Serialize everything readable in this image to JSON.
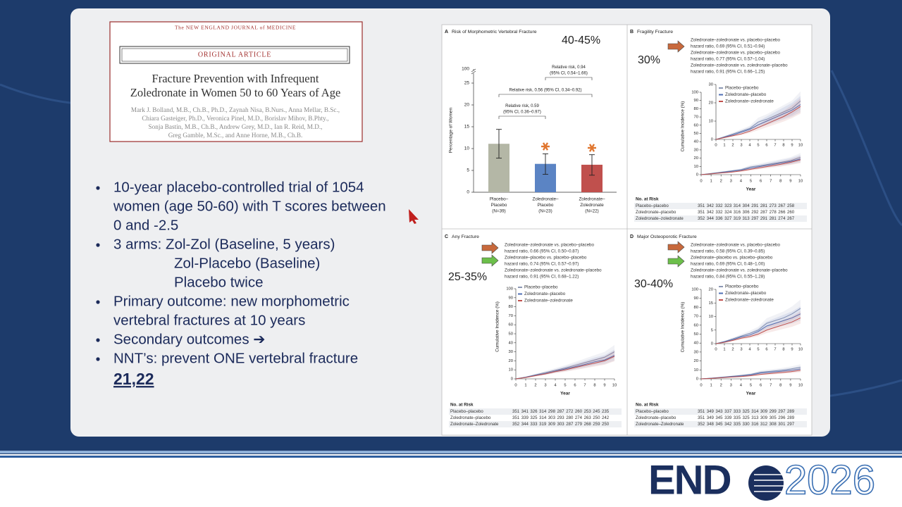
{
  "article": {
    "journal": "The NEW ENGLAND JOURNAL of MEDICINE",
    "section": "ORIGINAL ARTICLE",
    "title_lines": [
      "Fracture Prevention with Infrequent",
      "Zoledronate in Women 50 to 60 Years of Age"
    ],
    "author_lines": [
      "Mark J. Bolland, M.B., Ch.B., Ph.D., Zaynah Nisa, B.Nurs., Anna Mellar, B.Sc.,",
      "Chiara Gasteiger, Ph.D., Veronica Pinel, M.D., Borislav Mihov, B.Phty.,",
      "Sonja Bastin, M.B., Ch.B., Andrew Grey, M.D., Ian R. Reid, M.D.,",
      "Greg Gamble, M.Sc., and Anne Horne, M.B., Ch.B."
    ]
  },
  "bullets": [
    {
      "lines": [
        "10-year placebo-controlled trial of 1054",
        "women (age 50-60) with T scores between",
        "0 and -2.5"
      ]
    },
    {
      "lines": [
        "3 arms:  Zol-Zol (Baseline, 5 years)",
        "Zol-Placebo (Baseline)",
        "Placebo twice"
      ]
    },
    {
      "lines": [
        "Primary outcome:  new morphometric",
        "vertebral fractures at 10 years"
      ]
    },
    {
      "lines": [
        "Secondary outcomes ➔"
      ]
    },
    {
      "lines": [
        "NNT’s:  prevent ONE vertebral fracture"
      ]
    }
  ],
  "nnt": "21,22",
  "figure": {
    "panel_a": {
      "label": "A",
      "title": "Risk of Morphometric Vertebral Fracture",
      "annotation": "40-45%",
      "y_label": "Percentage of Women",
      "ylim": [
        0,
        25
      ],
      "yticks": [
        0,
        5,
        10,
        15,
        20,
        25
      ],
      "axis_break_label": "100",
      "categories": [
        [
          "Placebo–",
          "Placebo",
          "(N=39)"
        ],
        [
          "Zoledronate–",
          "Placebo",
          "(N=23)"
        ],
        [
          "Zoledronate–",
          "Zoledronate",
          "(N=22)"
        ]
      ],
      "values": [
        11.1,
        6.5,
        6.3
      ],
      "error_low": [
        7.8,
        4.1,
        3.9
      ],
      "error_high": [
        14.4,
        8.8,
        8.6
      ],
      "colors": [
        "#b4b7a6",
        "#5b84c4",
        "#c0504d"
      ],
      "comparisons": [
        {
          "lines": [
            "Relative risk, 0.94",
            "(95% CI, 0.54–1.66)"
          ]
        },
        {
          "lines": [
            "Relative risk, 0.56 (95% CI, 0.34–0.92)"
          ]
        },
        {
          "lines": [
            "Relative risk, 0.59",
            "(95% CI, 0.36–0.97)"
          ]
        }
      ]
    },
    "panel_b": {
      "label": "B",
      "title": "Fragility Fracture",
      "annotation": "30%",
      "hazard_lines": [
        "Zoledronate–zoledronate vs. placebo–placebo",
        "hazard ratio, 0.69 (95% CI, 0.51–0.94)",
        "Zoledronate–zoledronate vs. placebo–placebo",
        "hazard ratio, 0.77 (95% CI, 0.57–1.04)",
        "Zoledronate–zoledronate vs. zoledronate–placebo",
        "hazard ratio, 0.91 (95% CI, 0.66–1.25)"
      ],
      "y_label": "Cumulative Incidence (%)",
      "x_label": "Year",
      "x": [
        0,
        1,
        2,
        3,
        4,
        5,
        6,
        7,
        8,
        9,
        10
      ],
      "xticks": [
        0,
        1,
        2,
        3,
        4,
        5,
        6,
        7,
        8,
        9,
        10
      ],
      "ylim": [
        0,
        100
      ],
      "yticks": [
        0,
        10,
        20,
        30,
        40,
        50,
        60,
        70,
        80,
        90,
        100
      ],
      "inset": {
        "ylim": [
          0,
          30
        ],
        "yticks": [
          0,
          10,
          20,
          30
        ]
      },
      "series": [
        {
          "name": "Placebo–placebo",
          "color": "#8b97b3",
          "values": [
            0,
            1.5,
            3,
            4.5,
            6,
            9.5,
            11,
            13,
            15,
            17,
            21
          ]
        },
        {
          "name": "Zoledronate–placebo",
          "color": "#4f6fb5",
          "values": [
            0,
            1.2,
            2.5,
            4,
            5.5,
            8,
            10,
            12,
            14,
            16,
            19
          ]
        },
        {
          "name": "Zoledronate–zoledronate",
          "color": "#c0504d",
          "values": [
            0,
            1,
            2,
            3,
            4.5,
            6.5,
            8.5,
            10.5,
            12.5,
            15,
            18
          ]
        }
      ],
      "risk_table": {
        "title": "No. at Risk",
        "rows": [
          {
            "name": "Placebo–placebo",
            "counts": [
              "351",
              "342",
              "332",
              "323",
              "314",
              "304",
              "291",
              "281",
              "273",
              "267",
              "258"
            ]
          },
          {
            "name": "Zoledronate–placebo",
            "counts": [
              "351",
              "342",
              "332",
              "324",
              "316",
              "306",
              "292",
              "287",
              "278",
              "266",
              "260"
            ]
          },
          {
            "name": "Zoledronate–zoledronate",
            "counts": [
              "352",
              "344",
              "336",
              "327",
              "319",
              "313",
              "297",
              "291",
              "281",
              "274",
              "267"
            ]
          }
        ]
      }
    },
    "panel_c": {
      "label": "C",
      "title": "Any Fracture",
      "annotation": "25-35%",
      "hazard_lines": [
        "Zoledronate–zoledronate vs. placebo–placebo",
        "hazard ratio, 0.66 (95% CI, 0.50–0.87)",
        "Zoledronate–placebo vs. placebo–placebo",
        "hazard ratio, 0.74 (95% CI, 0.57–0.97)",
        "Zoledronate–zoledronate vs. zoledronate–placebo",
        "hazard ratio, 0.91 (95% CI, 0.68–1.22)"
      ],
      "y_label": "Cumulative Incidence (%)",
      "x_label": "Year",
      "x": [
        0,
        1,
        2,
        3,
        4,
        5,
        6,
        7,
        8,
        9,
        10
      ],
      "xticks": [
        0,
        1,
        2,
        3,
        4,
        5,
        6,
        7,
        8,
        9,
        10
      ],
      "ylim": [
        0,
        100
      ],
      "yticks": [
        0,
        10,
        20,
        30,
        40,
        50,
        60,
        70,
        80,
        90,
        100
      ],
      "series": [
        {
          "name": "Placebo–placebo",
          "color": "#8b97b3",
          "values": [
            0,
            2,
            4.5,
            7,
            9.5,
            12,
            15,
            18,
            21,
            24,
            30
          ]
        },
        {
          "name": "Zoledronate–placebo",
          "color": "#4f6fb5",
          "values": [
            0,
            1.8,
            4,
            6,
            8.5,
            11,
            13.5,
            16,
            19,
            21,
            26
          ]
        },
        {
          "name": "Zoledronate–zoledronate",
          "color": "#c0504d",
          "values": [
            0,
            1.5,
            3.5,
            5.5,
            8,
            10,
            12.5,
            15,
            17.5,
            20,
            25
          ]
        }
      ],
      "risk_table": {
        "title": "No. at Risk",
        "rows": [
          {
            "name": "Placebo–placebo",
            "counts": [
              "351",
              "341",
              "326",
              "314",
              "298",
              "287",
              "272",
              "260",
              "253",
              "245",
              "235"
            ]
          },
          {
            "name": "Zoledronate–placebo",
            "counts": [
              "351",
              "339",
              "325",
              "314",
              "303",
              "293",
              "280",
              "274",
              "263",
              "250",
              "242"
            ]
          },
          {
            "name": "Zoledronate–Zoledronate",
            "counts": [
              "352",
              "344",
              "333",
              "319",
              "309",
              "303",
              "287",
              "279",
              "268",
              "259",
              "250"
            ]
          }
        ]
      }
    },
    "panel_d": {
      "label": "D",
      "title": "Major Osteoporotic Fracture",
      "annotation": "30-40%",
      "hazard_lines": [
        "Zoledronate–zoledronate vs. placebo–placebo",
        "hazard ratio, 0.58 (95% CI, 0.39–0.85)",
        "Zoledronate–placebo vs. placebo–placebo",
        "hazard ratio, 0.69 (95% CI, 0.48–1.00)",
        "Zoledronate–zoledronate vs. zoledronate–placebo",
        "hazard ratio, 0.84 (95% CI, 0.55–1.28)"
      ],
      "y_label": "Cumulative Incidence (%)",
      "x_label": "Year",
      "x": [
        0,
        1,
        2,
        3,
        4,
        5,
        6,
        7,
        8,
        9,
        10
      ],
      "xticks": [
        0,
        1,
        2,
        3,
        4,
        5,
        6,
        7,
        8,
        9,
        10
      ],
      "ylim": [
        0,
        100
      ],
      "yticks": [
        0,
        10,
        20,
        30,
        40,
        50,
        60,
        70,
        80,
        90,
        100
      ],
      "inset": {
        "ylim": [
          0,
          20
        ],
        "yticks": [
          0,
          5,
          10,
          15,
          20
        ]
      },
      "series": [
        {
          "name": "Placebo–placebo",
          "color": "#8b97b3",
          "values": [
            0,
            0.8,
            1.8,
            2.8,
            3.8,
            5,
            7.5,
            8.5,
            9.5,
            11,
            13
          ]
        },
        {
          "name": "Zoledronate–placebo",
          "color": "#4f6fb5",
          "values": [
            0,
            0.7,
            1.5,
            2.5,
            3.2,
            4.5,
            6.5,
            7.5,
            8.5,
            9.5,
            11
          ]
        },
        {
          "name": "Zoledronate–zoledronate",
          "color": "#c0504d",
          "values": [
            0,
            0.5,
            1.2,
            2,
            2.6,
            3.5,
            5,
            6,
            7,
            8,
            9.5
          ]
        }
      ],
      "risk_table": {
        "title": "No. at Risk",
        "rows": [
          {
            "name": "Placebo–placebo",
            "counts": [
              "351",
              "349",
              "343",
              "337",
              "333",
              "325",
              "314",
              "309",
              "299",
              "297",
              "289"
            ]
          },
          {
            "name": "Zoledronate–placebo",
            "counts": [
              "351",
              "349",
              "345",
              "339",
              "335",
              "325",
              "313",
              "309",
              "305",
              "296",
              "289"
            ]
          },
          {
            "name": "Zoledronate–Zoledronate",
            "counts": [
              "352",
              "348",
              "345",
              "342",
              "335",
              "330",
              "316",
              "312",
              "308",
              "301",
              "297"
            ]
          }
        ]
      }
    }
  },
  "logo": {
    "left": "END",
    "right": "2026"
  }
}
